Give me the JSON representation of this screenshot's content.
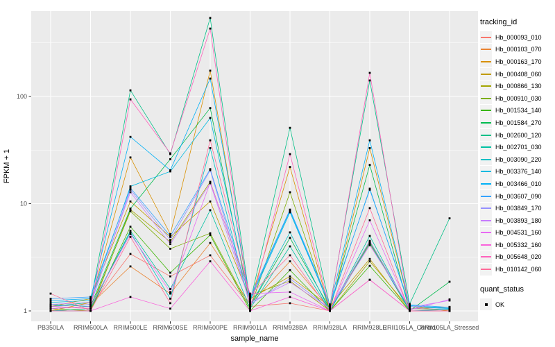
{
  "chart_data": {
    "type": "line",
    "title": "",
    "xlabel": "sample_name",
    "ylabel": "FPKM + 1",
    "y_scale": "log10",
    "y_ticks": [
      1,
      10,
      100
    ],
    "y_tick_labels": [
      "1",
      "10",
      "100"
    ],
    "y_minor_gridlines_at": [
      3.1623,
      31.623,
      316.23
    ],
    "ylim": [
      0.82,
      700
    ],
    "grid": true,
    "panel_bg": "#EBEBEB",
    "grid_color": "#FFFFFF",
    "point_color": "#000000",
    "tick_label_color": "#4D4D4D",
    "axis_title_color": "#000000",
    "categories": [
      "PB350LA",
      "RRIM600LA",
      "RRIM600LE",
      "RRIM600SE",
      "RRIM600PE",
      "RRIM901LA",
      "RRIM928BA",
      "RRIM928LA",
      "RRIM928LE",
      "RRII105LA_Control",
      "RRII105LA_Stressed"
    ],
    "legend_title": "tracking_id",
    "legend_position": "right",
    "series": [
      {
        "name": "Hb_000093_010",
        "color": "#F8766D",
        "values": [
          1.05,
          1.1,
          3.4,
          2.1,
          3.3,
          1.1,
          1.18,
          1.0,
          1.95,
          1.0,
          1.0
        ]
      },
      {
        "name": "Hb_000103_070",
        "color": "#EA8331",
        "values": [
          1.1,
          1.15,
          2.6,
          1.45,
          4.3,
          1.15,
          2.9,
          1.05,
          4.2,
          1.05,
          1.09
        ]
      },
      {
        "name": "Hb_000163_170",
        "color": "#D89000",
        "values": [
          1.0,
          1.2,
          27.0,
          5.2,
          174.0,
          1.2,
          22.0,
          1.0,
          33.0,
          1.1,
          1.0
        ]
      },
      {
        "name": "Hb_000408_060",
        "color": "#C09B00",
        "values": [
          1.1,
          1.3,
          10.5,
          4.9,
          10.5,
          1.3,
          2.1,
          1.1,
          3.05,
          1.0,
          1.0
        ]
      },
      {
        "name": "Hb_000866_130",
        "color": "#A3A500",
        "values": [
          1.05,
          1.0,
          8.8,
          4.4,
          16.0,
          1.4,
          1.9,
          1.0,
          2.9,
          1.05,
          1.02
        ]
      },
      {
        "name": "Hb_000910_030",
        "color": "#7CAE00",
        "values": [
          1.0,
          1.05,
          8.5,
          3.8,
          5.3,
          1.05,
          12.8,
          1.0,
          4.4,
          1.0,
          1.0
        ]
      },
      {
        "name": "Hb_001534_140",
        "color": "#39B600",
        "values": [
          1.0,
          1.0,
          6.1,
          2.27,
          5.1,
          1.0,
          2.4,
          1.0,
          2.63,
          1.0,
          1.0
        ]
      },
      {
        "name": "Hb_001584_270",
        "color": "#00BB4E",
        "values": [
          1.05,
          1.1,
          9.0,
          26.0,
          78.0,
          1.1,
          4.8,
          1.05,
          23.0,
          1.0,
          1.87
        ]
      },
      {
        "name": "Hb_002600_120",
        "color": "#00C087",
        "values": [
          1.1,
          1.2,
          114.0,
          29.0,
          540.0,
          1.2,
          51.0,
          1.1,
          141.0,
          1.16,
          7.3
        ]
      },
      {
        "name": "Hb_002701_030",
        "color": "#00C1A3",
        "values": [
          1.0,
          1.05,
          5.6,
          1.6,
          8.7,
          1.05,
          4.0,
          1.0,
          5.0,
          1.0,
          1.0
        ]
      },
      {
        "name": "Hb_003090_220",
        "color": "#00BFC4",
        "values": [
          1.15,
          1.1,
          5.4,
          1.3,
          33.0,
          1.1,
          5.4,
          1.0,
          4.3,
          1.0,
          1.03
        ]
      },
      {
        "name": "Hb_003376_140",
        "color": "#00BAE0",
        "values": [
          1.2,
          1.25,
          14.5,
          20.0,
          63.0,
          1.25,
          8.3,
          1.1,
          13.8,
          1.1,
          1.05
        ]
      },
      {
        "name": "Hb_003466_010",
        "color": "#00B0F6",
        "values": [
          1.25,
          1.3,
          42.0,
          20.5,
          147.0,
          1.3,
          8.6,
          1.1,
          39.0,
          1.12,
          1.06
        ]
      },
      {
        "name": "Hb_003607_090",
        "color": "#35A2FF",
        "values": [
          1.3,
          1.35,
          14.0,
          5.0,
          21.0,
          1.35,
          8.8,
          1.15,
          13.5,
          1.14,
          1.08
        ]
      },
      {
        "name": "Hb_003849_170",
        "color": "#9590FF",
        "values": [
          1.1,
          1.15,
          13.5,
          4.6,
          20.5,
          1.15,
          2.0,
          1.05,
          4.5,
          1.05,
          1.04
        ]
      },
      {
        "name": "Hb_003893_180",
        "color": "#C77CFF",
        "values": [
          1.15,
          1.2,
          12.8,
          4.2,
          15.5,
          1.2,
          1.85,
          1.05,
          4.1,
          1.08,
          1.25
        ]
      },
      {
        "name": "Hb_004531_160",
        "color": "#E76BF3",
        "values": [
          1.05,
          1.1,
          5.2,
          1.5,
          15.8,
          1.45,
          1.5,
          1.0,
          7.0,
          1.02,
          1.28
        ]
      },
      {
        "name": "Hb_005332_160",
        "color": "#FA62DB",
        "values": [
          1.0,
          1.0,
          1.35,
          1.05,
          2.9,
          1.0,
          1.35,
          1.0,
          1.95,
          1.0,
          1.0
        ]
      },
      {
        "name": "Hb_005648_020",
        "color": "#FF62BC",
        "values": [
          1.1,
          1.05,
          94.0,
          29.5,
          430.0,
          1.05,
          29.0,
          1.05,
          166.0,
          1.0,
          1.0
        ]
      },
      {
        "name": "Hb_010142_060",
        "color": "#FF6A98",
        "values": [
          1.45,
          1.0,
          4.9,
          1.18,
          39.0,
          1.4,
          3.3,
          1.0,
          9.1,
          1.0,
          1.0
        ]
      }
    ],
    "quant_status": {
      "title": "quant_status",
      "items": [
        {
          "label": "OK",
          "shape": "filled-square",
          "color": "#000000"
        }
      ]
    }
  }
}
